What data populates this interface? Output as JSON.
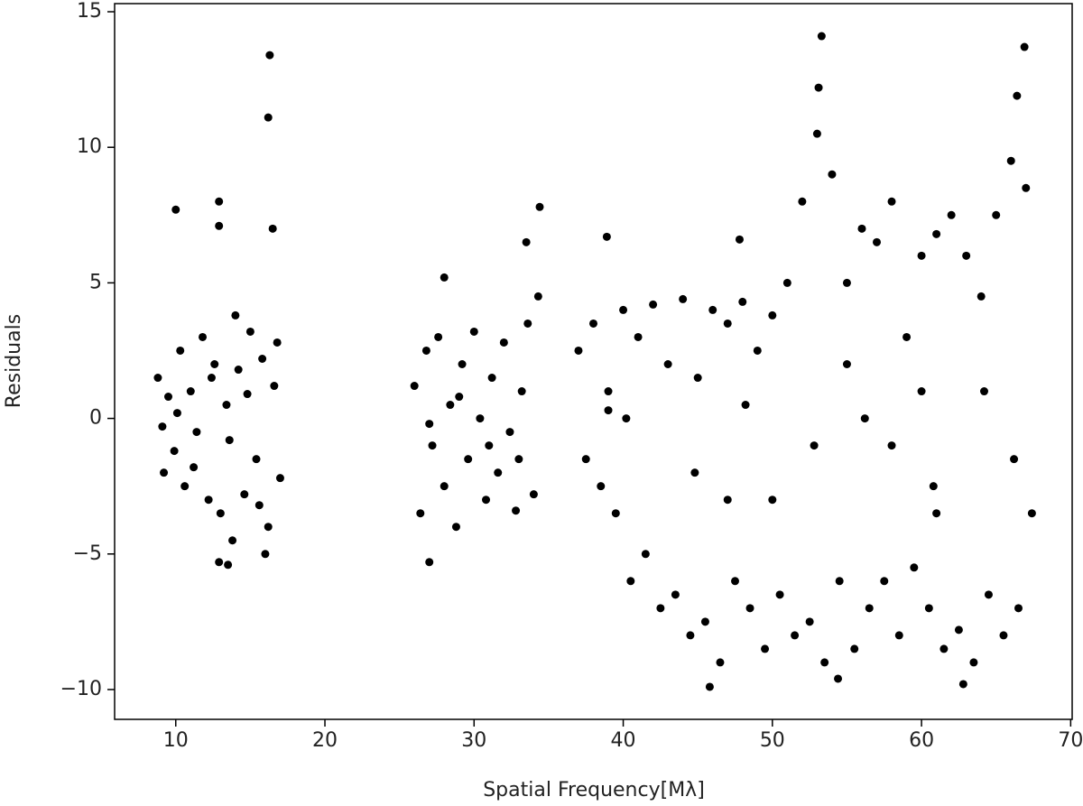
{
  "chart_data": {
    "type": "scatter",
    "x_label": "Spatial Frequency[Mλ]",
    "y_label": "Residuals",
    "color": "#000000",
    "xlim": [
      5.9,
      70.1
    ],
    "ylim": [
      -11.1,
      15.3
    ],
    "xticks": [
      10,
      20,
      30,
      40,
      50,
      60,
      70
    ],
    "yticks": [
      {
        "value": -10,
        "label": "−10"
      },
      {
        "value": -5,
        "label": "−5"
      },
      0,
      5,
      10,
      15
    ],
    "x": [
      8.8,
      9.2,
      9.5,
      9.9,
      10.3,
      10.6,
      11,
      11.4,
      11.8,
      12.2,
      12.6,
      13,
      13.4,
      13.8,
      14.2,
      14.6,
      15,
      15.4,
      15.8,
      16.2,
      16.6,
      17,
      9.1,
      10.1,
      11.2,
      12.4,
      13.6,
      14.8,
      15.6,
      16.8,
      16.3,
      16.2,
      10,
      12.9,
      12.9,
      16.5,
      13.5,
      12.9,
      16,
      14,
      26,
      26.4,
      26.8,
      27.2,
      27.6,
      28,
      28.4,
      28.8,
      29.2,
      29.6,
      30,
      30.4,
      30.8,
      31.2,
      31.6,
      32,
      32.4,
      32.8,
      33.2,
      33.6,
      34,
      34.3,
      27,
      29,
      31,
      33,
      34.4,
      27,
      33.5,
      28,
      37,
      37.5,
      38,
      38.5,
      39,
      39.5,
      40,
      40.5,
      41,
      41.5,
      42,
      42.5,
      43,
      43.5,
      44,
      44.5,
      45,
      45.5,
      46,
      46.5,
      47,
      47.5,
      48,
      48.5,
      49,
      49.5,
      50,
      50.5,
      51,
      51.5,
      52,
      52.5,
      53,
      53.5,
      54,
      54.5,
      55,
      55.5,
      56,
      56.5,
      57,
      57.5,
      58,
      58.5,
      59,
      59.5,
      60,
      60.5,
      61,
      61.5,
      62,
      62.5,
      63,
      63.5,
      64,
      64.5,
      65,
      65.5,
      66,
      66.5,
      67,
      67.4,
      40.2,
      44.8,
      48.2,
      52.8,
      56.2,
      60.8,
      64.2,
      66.2,
      47,
      55,
      61,
      39,
      53.3,
      66.9,
      53.1,
      66.4,
      45.8,
      62.8,
      54.4,
      38.9,
      47.8,
      58,
      60,
      50
    ],
    "values": [
      1.5,
      -2,
      0.8,
      -1.2,
      2.5,
      -2.5,
      1,
      -0.5,
      3,
      -3,
      2,
      -3.5,
      0.5,
      -4.5,
      1.8,
      -2.8,
      3.2,
      -1.5,
      2.2,
      -4,
      1.2,
      -2.2,
      -0.3,
      0.2,
      -1.8,
      1.5,
      -0.8,
      0.9,
      -3.2,
      2.8,
      13.4,
      11.1,
      7.7,
      8,
      7.1,
      7,
      -5.4,
      -5.3,
      -5,
      3.8,
      1.2,
      -3.5,
      2.5,
      -1,
      3,
      -2.5,
      0.5,
      -4,
      2,
      -1.5,
      3.2,
      0,
      -3,
      1.5,
      -2,
      2.8,
      -0.5,
      -3.4,
      1,
      3.5,
      -2.8,
      4.5,
      -0.2,
      0.8,
      -1,
      -1.5,
      7.8,
      -5.3,
      6.5,
      5.2,
      2.5,
      -1.5,
      3.5,
      -2.5,
      1,
      -3.5,
      4,
      -6,
      3,
      -5,
      4.2,
      -7,
      2,
      -6.5,
      4.4,
      -8,
      1.5,
      -7.5,
      4,
      -9,
      3.5,
      -6,
      4.3,
      -7,
      2.5,
      -8.5,
      3.8,
      -6.5,
      5,
      -8,
      8,
      -7.5,
      10.5,
      -9,
      9,
      -6,
      5,
      -8.5,
      7,
      -7,
      6.5,
      -6,
      8,
      -8,
      3,
      -5.5,
      6,
      -7,
      6.8,
      -8.5,
      7.5,
      -7.8,
      6,
      -9,
      4.5,
      -6.5,
      7.5,
      -8,
      9.5,
      -7,
      8.5,
      -3.5,
      0,
      -2,
      0.5,
      -1,
      0,
      -2.5,
      1,
      -1.5,
      -3,
      2,
      -3.5,
      0.3,
      14.1,
      13.7,
      12.2,
      11.9,
      -9.9,
      -9.8,
      -9.6,
      6.7,
      6.6,
      -1,
      1,
      -3
    ]
  }
}
